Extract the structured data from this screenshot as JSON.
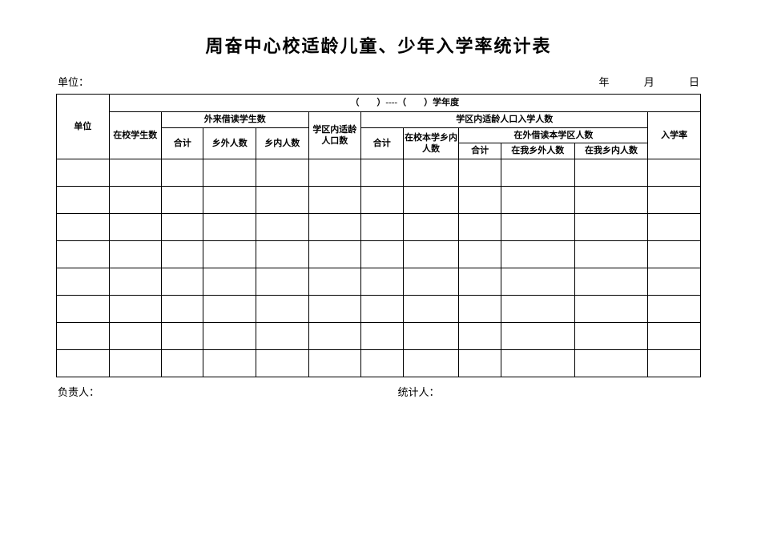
{
  "title": "周奋中心校适龄儿童、少年入学率统计表",
  "meta": {
    "unit_label": "单位：",
    "year_label": "年",
    "month_label": "月",
    "day_label": "日"
  },
  "table": {
    "year_range": "（　　）----（　　）学年度",
    "headers": {
      "unit": "单位",
      "in_school_count": "在校学生数",
      "external_students": "外来借读学生数",
      "district_age_pop": "学区内适龄人口数",
      "district_enrolled": "学区内适龄人口入学人数",
      "enroll_rate": "入学率",
      "heji": "合计",
      "xiang_wai": "乡外人数",
      "xiang_nei": "乡内人数",
      "in_school_this": "在校本学乡内人数",
      "out_borrow": "在外借读本学区人数",
      "in_our_xiang_wai": "在我乡外人数",
      "in_our_xiang_nei": "在我乡内人数"
    },
    "col_widths": {
      "c1": "7.5%",
      "c2": "7.5%",
      "c3": "6.0%",
      "c4": "7.5%",
      "c5": "7.5%",
      "c6": "7.5%",
      "c7": "6.0%",
      "c8": "8.0%",
      "c9": "6.0%",
      "c10": "10.5%",
      "c11": "10.5%",
      "c12": "7.5%"
    },
    "body_row_count": 8
  },
  "footer": {
    "responsible": "负责人：",
    "statistician": "统计人："
  }
}
